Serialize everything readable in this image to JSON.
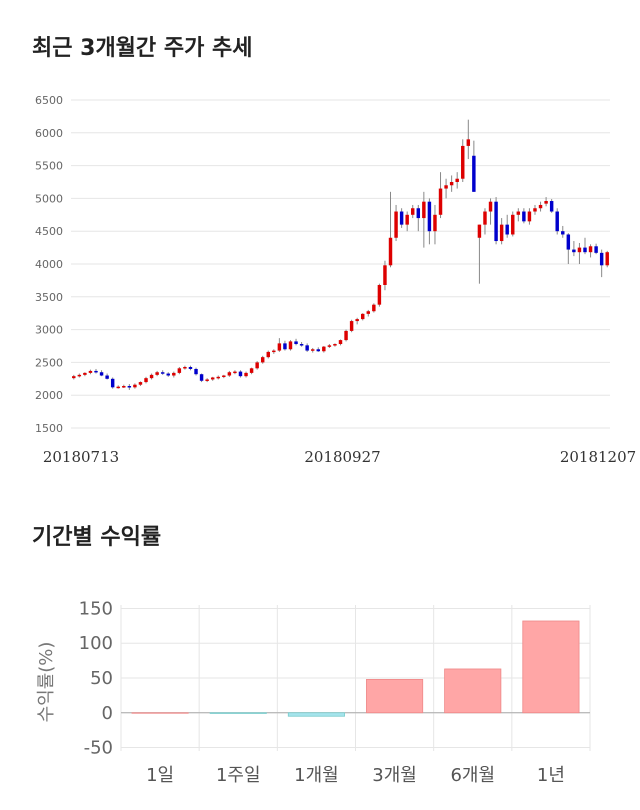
{
  "sections": {
    "price_title": "최근 3개월간 주가 추세",
    "returns_title": "기간별 수익률"
  },
  "colors": {
    "up": "#dd0000",
    "down": "#0000cc",
    "bar_pos": "#ffa6a6",
    "bar_neg": "#a6e4ec"
  },
  "chart_data": [
    {
      "type": "candlestick",
      "title": "최근 3개월간 주가 추세",
      "ylim": [
        1500,
        6500
      ],
      "yticks": [
        1500,
        2000,
        2500,
        3000,
        3500,
        4000,
        4500,
        5000,
        5500,
        6000,
        6500
      ],
      "xtick_labels": [
        "20180713",
        "20180927",
        "20181207"
      ],
      "grid": true,
      "ohlc": [
        [
          2260,
          2310,
          2240,
          2290
        ],
        [
          2290,
          2330,
          2270,
          2310
        ],
        [
          2310,
          2350,
          2290,
          2340
        ],
        [
          2340,
          2390,
          2320,
          2370
        ],
        [
          2370,
          2400,
          2330,
          2350
        ],
        [
          2350,
          2380,
          2290,
          2300
        ],
        [
          2300,
          2330,
          2240,
          2250
        ],
        [
          2250,
          2270,
          2100,
          2120
        ],
        [
          2120,
          2150,
          2100,
          2130
        ],
        [
          2130,
          2160,
          2110,
          2140
        ],
        [
          2140,
          2170,
          2080,
          2120
        ],
        [
          2120,
          2180,
          2100,
          2160
        ],
        [
          2160,
          2210,
          2140,
          2200
        ],
        [
          2200,
          2280,
          2180,
          2260
        ],
        [
          2260,
          2330,
          2240,
          2310
        ],
        [
          2310,
          2370,
          2290,
          2350
        ],
        [
          2350,
          2380,
          2310,
          2330
        ],
        [
          2330,
          2350,
          2280,
          2300
        ],
        [
          2300,
          2360,
          2270,
          2340
        ],
        [
          2340,
          2430,
          2320,
          2410
        ],
        [
          2410,
          2450,
          2390,
          2430
        ],
        [
          2430,
          2450,
          2380,
          2400
        ],
        [
          2400,
          2420,
          2300,
          2320
        ],
        [
          2320,
          2330,
          2200,
          2220
        ],
        [
          2220,
          2260,
          2200,
          2240
        ],
        [
          2240,
          2280,
          2220,
          2270
        ],
        [
          2270,
          2300,
          2240,
          2280
        ],
        [
          2280,
          2310,
          2260,
          2300
        ],
        [
          2300,
          2370,
          2280,
          2350
        ],
        [
          2350,
          2380,
          2320,
          2360
        ],
        [
          2360,
          2380,
          2270,
          2290
        ],
        [
          2290,
          2360,
          2270,
          2340
        ],
        [
          2340,
          2420,
          2320,
          2410
        ],
        [
          2410,
          2520,
          2390,
          2500
        ],
        [
          2500,
          2600,
          2480,
          2580
        ],
        [
          2580,
          2680,
          2560,
          2660
        ],
        [
          2660,
          2700,
          2630,
          2680
        ],
        [
          2680,
          2870,
          2660,
          2790
        ],
        [
          2790,
          2830,
          2680,
          2700
        ],
        [
          2700,
          2840,
          2680,
          2820
        ],
        [
          2820,
          2860,
          2760,
          2780
        ],
        [
          2780,
          2810,
          2740,
          2760
        ],
        [
          2760,
          2790,
          2660,
          2680
        ],
        [
          2680,
          2720,
          2650,
          2700
        ],
        [
          2700,
          2730,
          2660,
          2670
        ],
        [
          2670,
          2750,
          2650,
          2740
        ],
        [
          2740,
          2780,
          2720,
          2760
        ],
        [
          2760,
          2790,
          2740,
          2780
        ],
        [
          2780,
          2850,
          2760,
          2840
        ],
        [
          2840,
          3000,
          2820,
          2980
        ],
        [
          2980,
          3150,
          2960,
          3130
        ],
        [
          3130,
          3180,
          3080,
          3160
        ],
        [
          3160,
          3250,
          3140,
          3240
        ],
        [
          3240,
          3300,
          3200,
          3280
        ],
        [
          3280,
          3400,
          3260,
          3380
        ],
        [
          3380,
          3700,
          3350,
          3680
        ],
        [
          3680,
          4050,
          3600,
          3980
        ],
        [
          3980,
          5100,
          3950,
          4400
        ],
        [
          4400,
          4900,
          4350,
          4800
        ],
        [
          4800,
          4850,
          4550,
          4600
        ],
        [
          4600,
          4800,
          4500,
          4750
        ],
        [
          4750,
          4900,
          4700,
          4850
        ],
        [
          4850,
          4900,
          4500,
          4700
        ],
        [
          4700,
          5100,
          4250,
          4950
        ],
        [
          4950,
          5000,
          4300,
          4500
        ],
        [
          4500,
          4900,
          4300,
          4750
        ],
        [
          4750,
          5400,
          4700,
          5150
        ],
        [
          5150,
          5300,
          5000,
          5200
        ],
        [
          5200,
          5350,
          5100,
          5250
        ],
        [
          5250,
          5400,
          5150,
          5300
        ],
        [
          5300,
          5900,
          5250,
          5800
        ],
        [
          5800,
          6200,
          5600,
          5900
        ],
        [
          5650,
          5880,
          5100,
          5100
        ],
        [
          4400,
          4600,
          3700,
          4600
        ],
        [
          4600,
          4850,
          4450,
          4800
        ],
        [
          4800,
          5000,
          4600,
          4950
        ],
        [
          4950,
          5020,
          4300,
          4350
        ],
        [
          4350,
          4700,
          4300,
          4600
        ],
        [
          4600,
          4750,
          4400,
          4450
        ],
        [
          4450,
          4800,
          4420,
          4750
        ],
        [
          4750,
          4850,
          4650,
          4800
        ],
        [
          4800,
          4850,
          4620,
          4650
        ],
        [
          4650,
          4850,
          4600,
          4800
        ],
        [
          4800,
          4900,
          4750,
          4850
        ],
        [
          4850,
          4950,
          4800,
          4900
        ],
        [
          4920,
          5020,
          4880,
          4960
        ],
        [
          4960,
          4990,
          4780,
          4800
        ],
        [
          4800,
          4850,
          4450,
          4500
        ],
        [
          4500,
          4580,
          4400,
          4450
        ],
        [
          4450,
          4470,
          4000,
          4220
        ],
        [
          4220,
          4350,
          4120,
          4180
        ],
        [
          4180,
          4320,
          4000,
          4250
        ],
        [
          4250,
          4400,
          4150,
          4180
        ],
        [
          4180,
          4300,
          4100,
          4270
        ],
        [
          4270,
          4310,
          4150,
          4170
        ],
        [
          4170,
          4220,
          3800,
          3980
        ],
        [
          3980,
          4200,
          3950,
          4180
        ]
      ]
    },
    {
      "type": "bar",
      "title": "기간별 수익률",
      "ylabel": "수익률(%)",
      "ylim": [
        -55,
        155
      ],
      "yticks": [
        -50,
        0,
        50,
        100,
        150
      ],
      "grid": true,
      "categories": [
        "1일",
        "1주일",
        "1개월",
        "3개월",
        "6개월",
        "1년"
      ],
      "values": [
        0,
        -1,
        -5,
        48,
        63,
        132
      ]
    }
  ]
}
